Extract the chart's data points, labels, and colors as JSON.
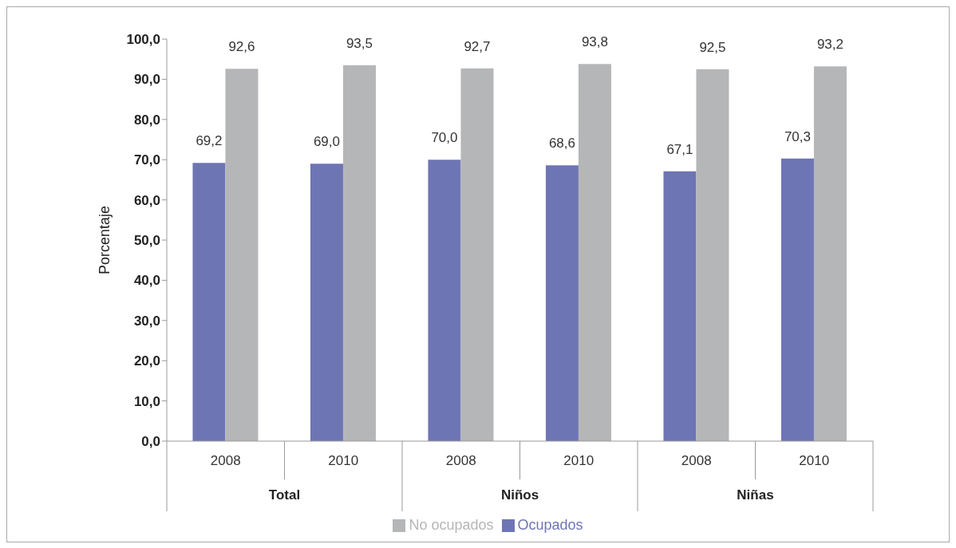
{
  "chart_data": {
    "type": "bar",
    "ylabel": "Porcentaje",
    "categories": [
      "2008",
      "2010",
      "2008",
      "2010",
      "2008",
      "2010"
    ],
    "annotations": [
      "Total",
      "Niños",
      "Niñas"
    ],
    "series": [
      {
        "name": "Ocupados",
        "color": "#6e75b4",
        "values": [
          69.2,
          69.0,
          70.0,
          68.6,
          67.1,
          70.3
        ],
        "value_labels": [
          "69,2",
          "69,0",
          "70,0",
          "68,6",
          "67,1",
          "70,3"
        ]
      },
      {
        "name": "No ocupados",
        "color": "#b5b6b8",
        "values": [
          92.6,
          93.5,
          92.7,
          93.8,
          92.5,
          93.2
        ],
        "value_labels": [
          "92,6",
          "93,5",
          "92,7",
          "93,8",
          "92,5",
          "93,2"
        ]
      }
    ],
    "ylim": [
      0,
      100
    ],
    "yticks": [
      {
        "value": 0,
        "label": "0,0"
      },
      {
        "value": 10,
        "label": "10,0"
      },
      {
        "value": 20,
        "label": "20,0"
      },
      {
        "value": 30,
        "label": "30,0"
      },
      {
        "value": 40,
        "label": "40,0"
      },
      {
        "value": 50,
        "label": "50,0"
      },
      {
        "value": 60,
        "label": "60,0"
      },
      {
        "value": 70,
        "label": "70,0"
      },
      {
        "value": 80,
        "label": "80,0"
      },
      {
        "value": 90,
        "label": "90,0"
      },
      {
        "value": 100,
        "label": "100,0"
      }
    ],
    "grid": false,
    "legend": "bottom"
  }
}
